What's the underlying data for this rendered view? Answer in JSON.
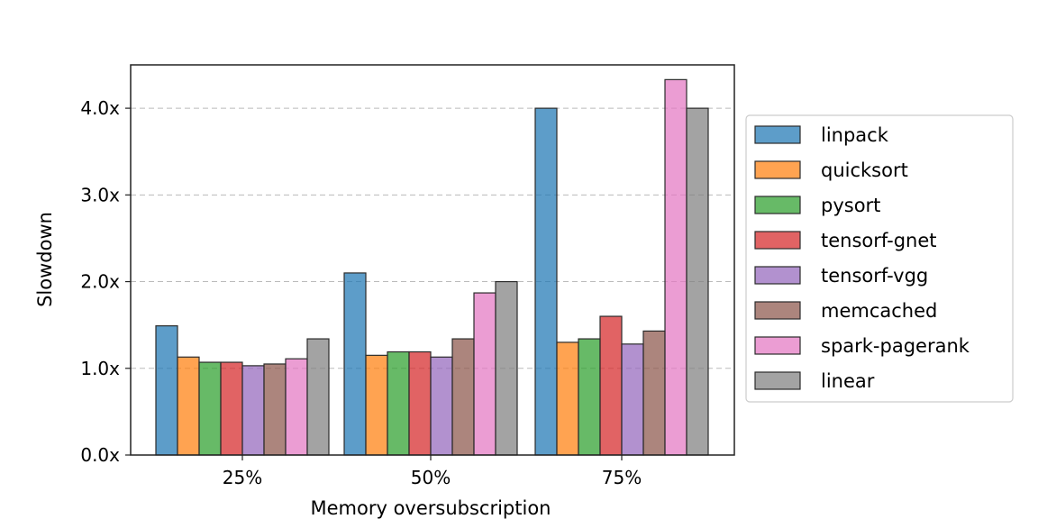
{
  "chart_data": {
    "type": "bar",
    "title": "",
    "xlabel": "Memory oversubscription",
    "ylabel": "Slowdown",
    "categories": [
      "25%",
      "50%",
      "75%"
    ],
    "ylim": [
      0,
      4.5
    ],
    "yticks": [
      0,
      1,
      2,
      3,
      4
    ],
    "ytick_labels": [
      "0.0x",
      "1.0x",
      "2.0x",
      "3.0x",
      "4.0x"
    ],
    "grid": "y-dashed",
    "legend_position": "right-outside",
    "series": [
      {
        "name": "linpack",
        "color": "#1f77b4",
        "values": [
          1.49,
          2.1,
          4.0
        ]
      },
      {
        "name": "quicksort",
        "color": "#ff7f0e",
        "values": [
          1.13,
          1.15,
          1.3
        ]
      },
      {
        "name": "pysort",
        "color": "#2ca02c",
        "values": [
          1.07,
          1.19,
          1.34
        ]
      },
      {
        "name": "tensorf-gnet",
        "color": "#d62728",
        "values": [
          1.07,
          1.19,
          1.6
        ]
      },
      {
        "name": "tensorf-vgg",
        "color": "#9467bd",
        "values": [
          1.03,
          1.13,
          1.28
        ]
      },
      {
        "name": "memcached",
        "color": "#8c564b",
        "values": [
          1.05,
          1.34,
          1.43
        ]
      },
      {
        "name": "spark-pagerank",
        "color": "#e377c2",
        "values": [
          1.11,
          1.87,
          4.33
        ]
      },
      {
        "name": "linear",
        "color": "#7f7f7f",
        "values": [
          1.34,
          2.0,
          4.0
        ]
      }
    ]
  }
}
